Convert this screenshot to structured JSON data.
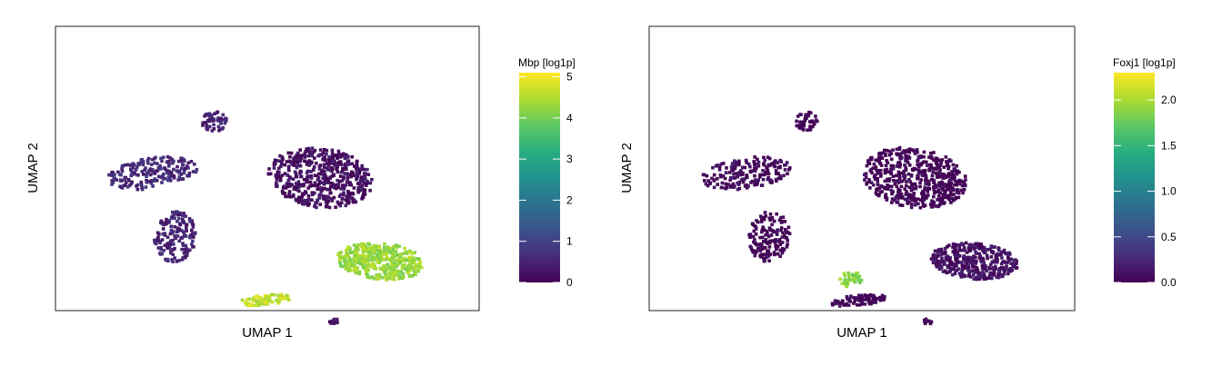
{
  "chart_data": [
    {
      "type": "heatmap",
      "xlabel": "UMAP 1",
      "ylabel": "UMAP 2",
      "legend_title": "Mbp [log1p]",
      "legend_placement": "right",
      "colormap": "viridis",
      "range": [
        0,
        5.1
      ],
      "ticks": [
        "0",
        "1",
        "2",
        "3",
        "4",
        "5"
      ],
      "tick_values": [
        0,
        1,
        2,
        3,
        4,
        5
      ],
      "clusters": [
        {
          "name": "upper-right",
          "value": 0.2
        },
        {
          "name": "left-group",
          "value": 0.6
        },
        {
          "name": "lower-left",
          "value": 0.5
        },
        {
          "name": "top-small",
          "value": 0.5
        },
        {
          "name": "right-ellipse",
          "value": 4.3
        },
        {
          "name": "bottom-arc",
          "value": 4.6
        },
        {
          "name": "bottom-small",
          "value": 0.3
        }
      ]
    },
    {
      "type": "heatmap",
      "xlabel": "UMAP 1",
      "ylabel": "UMAP 2",
      "legend_title": "Foxj1 [log1p]",
      "legend_placement": "right",
      "colormap": "viridis",
      "range": [
        0,
        2.3
      ],
      "ticks": [
        "0.0",
        "0.5",
        "1.0",
        "1.5",
        "2.0"
      ],
      "tick_values": [
        0,
        0.5,
        1.0,
        1.5,
        2.0
      ],
      "clusters": [
        {
          "name": "upper-right",
          "value": 0.0
        },
        {
          "name": "left-group",
          "value": 0.05
        },
        {
          "name": "lower-left",
          "value": 0.0
        },
        {
          "name": "top-small",
          "value": 0.0
        },
        {
          "name": "right-ellipse",
          "value": 0.1
        },
        {
          "name": "bottom-arc",
          "value": 0.0
        },
        {
          "name": "bottom-hotspot",
          "value": 1.9
        },
        {
          "name": "bottom-small",
          "value": 0.0
        }
      ]
    }
  ]
}
